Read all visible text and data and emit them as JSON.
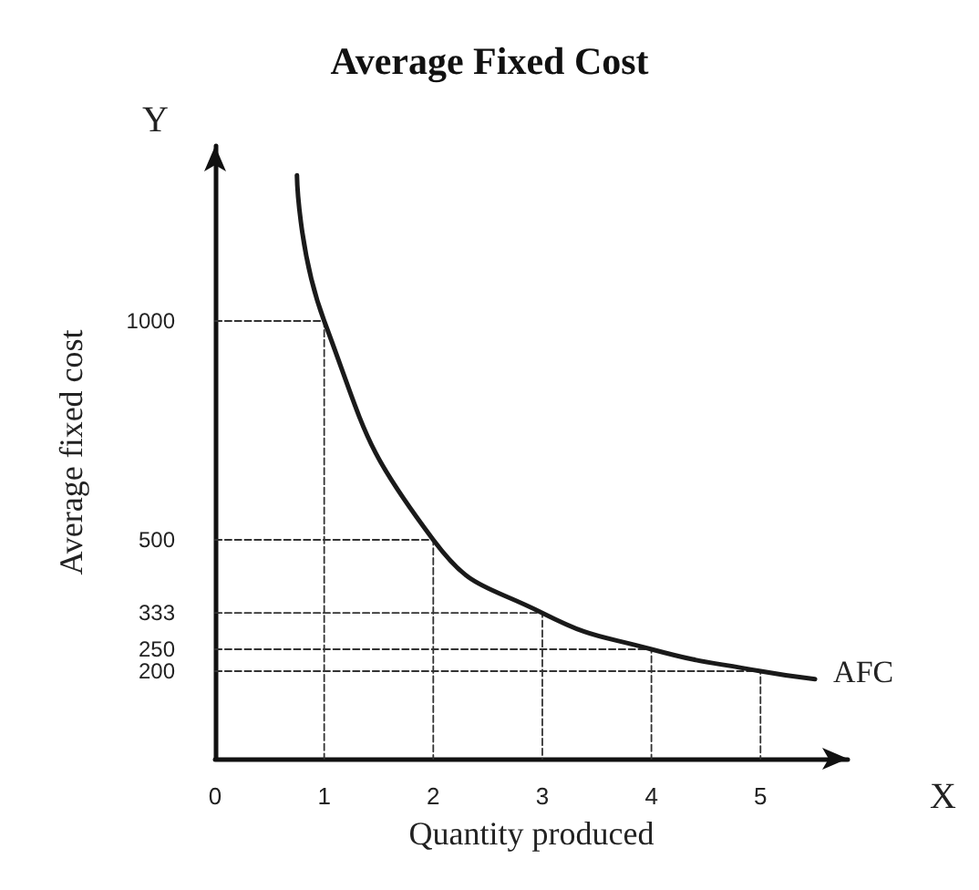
{
  "chart_data": {
    "type": "line",
    "title": "Average Fixed Cost",
    "xlabel": "Quantity produced",
    "ylabel": "Average fixed cost",
    "annotations": [
      "Y",
      "X"
    ],
    "x": [
      0.75,
      1,
      2,
      3,
      4,
      5,
      5.5
    ],
    "series": [
      {
        "name": "AFC",
        "color": "#1a1a1a",
        "values": [
          1333,
          1000,
          500,
          333,
          250,
          200,
          182
        ]
      },
      {
        "color": "#333333",
        "line_style": "dashed",
        "x": [
          0,
          1,
          1
        ],
        "values": [
          1000,
          1000,
          0
        ]
      },
      {
        "color": "#333333",
        "line_style": "dashed",
        "x": [
          0,
          2,
          2
        ],
        "values": [
          500,
          500,
          0
        ]
      },
      {
        "color": "#333333",
        "line_style": "dashed",
        "x": [
          0,
          3,
          3
        ],
        "values": [
          333,
          333,
          0
        ]
      },
      {
        "color": "#333333",
        "line_style": "dashed",
        "x": [
          0,
          4,
          4
        ],
        "values": [
          250,
          250,
          0
        ]
      },
      {
        "color": "#333333",
        "line_style": "dashed",
        "x": [
          0,
          5,
          5
        ],
        "values": [
          200,
          200,
          0
        ]
      }
    ],
    "xlim": [
      0,
      5.8
    ],
    "xticks": [
      0,
      1,
      2,
      3,
      4,
      5
    ],
    "ylim": [
      0,
      1400
    ],
    "yticks": [
      200,
      250,
      333,
      500,
      1000
    ],
    "grid": false,
    "legend": false,
    "marker": "none",
    "line_style": "solid"
  }
}
